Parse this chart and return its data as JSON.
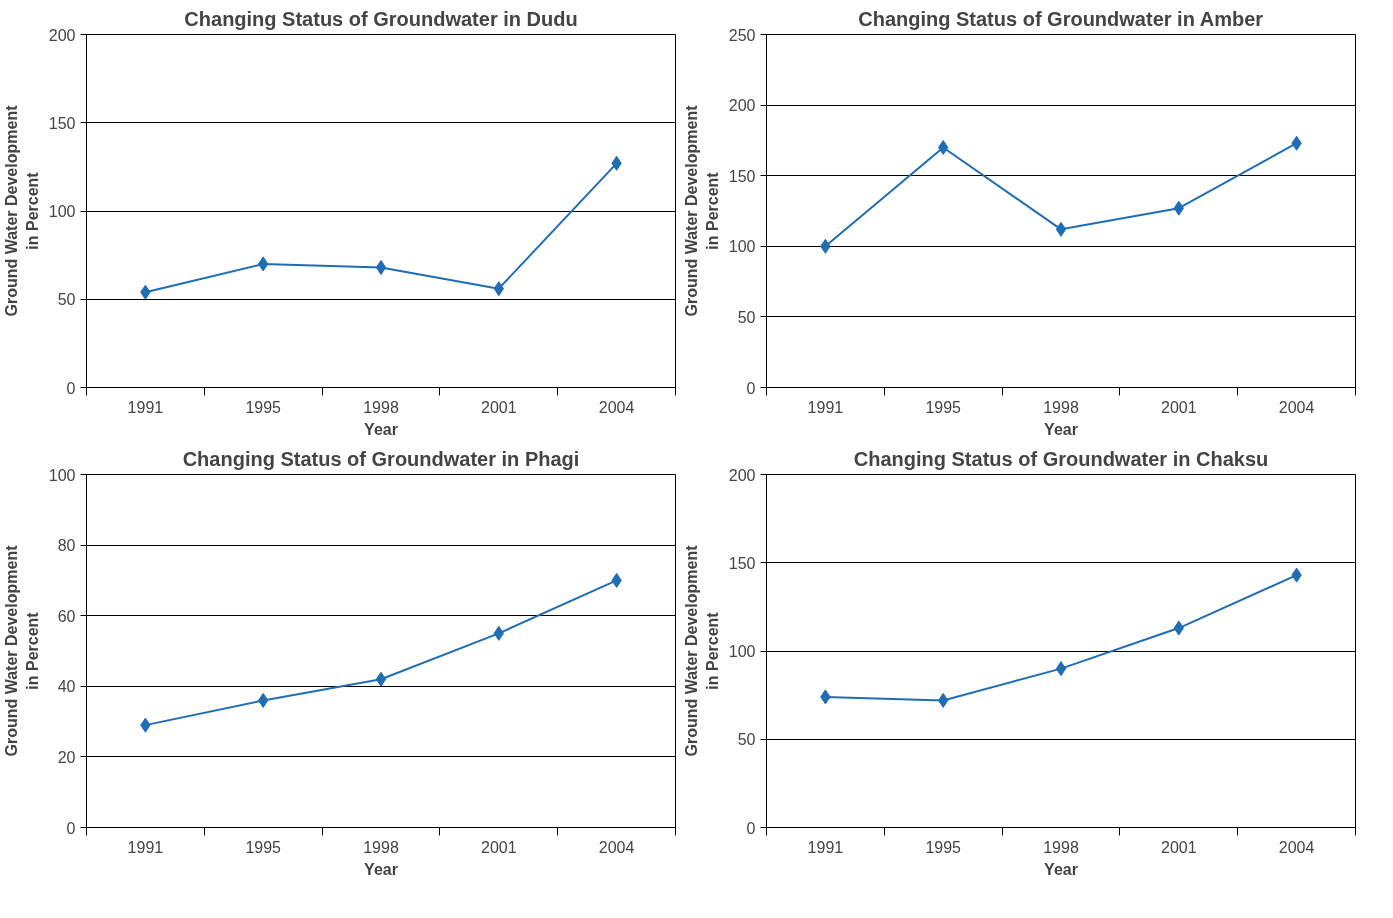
{
  "chart_data": [
    {
      "type": "line",
      "title": "Changing Status of Groundwater in Dudu",
      "xlabel": "Year",
      "ylabel": "Ground Water Development\nin Percent",
      "categories": [
        "1991",
        "1995",
        "1998",
        "2001",
        "2004"
      ],
      "series": [
        {
          "color": "#1f6db5",
          "values": [
            54,
            70,
            68,
            56,
            127
          ]
        }
      ],
      "ylim": [
        0,
        200
      ],
      "yticks": [
        0,
        50,
        100,
        150,
        200
      ],
      "grid": "y",
      "marker": "diamond",
      "line_style": "solid"
    },
    {
      "type": "line",
      "title": "Changing Status of Groundwater in Amber",
      "xlabel": "Year",
      "ylabel": "Ground Water Development\nin Percent",
      "categories": [
        "1991",
        "1995",
        "1998",
        "2001",
        "2004"
      ],
      "series": [
        {
          "color": "#1f6db5",
          "values": [
            100,
            170,
            112,
            127,
            173
          ]
        }
      ],
      "ylim": [
        0,
        250
      ],
      "yticks": [
        0,
        50,
        100,
        150,
        200,
        250
      ],
      "grid": "y",
      "marker": "diamond",
      "line_style": "solid"
    },
    {
      "type": "line",
      "title": "Changing Status of Groundwater in Phagi",
      "xlabel": "Year",
      "ylabel": "Ground Water Development\nin Percent",
      "categories": [
        "1991",
        "1995",
        "1998",
        "2001",
        "2004"
      ],
      "series": [
        {
          "color": "#1f6db5",
          "values": [
            29,
            36,
            42,
            55,
            70
          ]
        }
      ],
      "ylim": [
        0,
        100
      ],
      "yticks": [
        0,
        20,
        40,
        60,
        80,
        100
      ],
      "grid": "y",
      "marker": "diamond",
      "line_style": "solid"
    },
    {
      "type": "line",
      "title": "Changing Status of Groundwater in Chaksu",
      "xlabel": "Year",
      "ylabel": "Ground Water Development\nin Percent",
      "categories": [
        "1991",
        "1995",
        "1998",
        "2001",
        "2004"
      ],
      "series": [
        {
          "color": "#1f6db5",
          "values": [
            74,
            72,
            90,
            113,
            143
          ]
        }
      ],
      "ylim": [
        0,
        200
      ],
      "yticks": [
        0,
        50,
        100,
        150,
        200
      ],
      "grid": "y",
      "marker": "diamond",
      "line_style": "solid"
    }
  ]
}
